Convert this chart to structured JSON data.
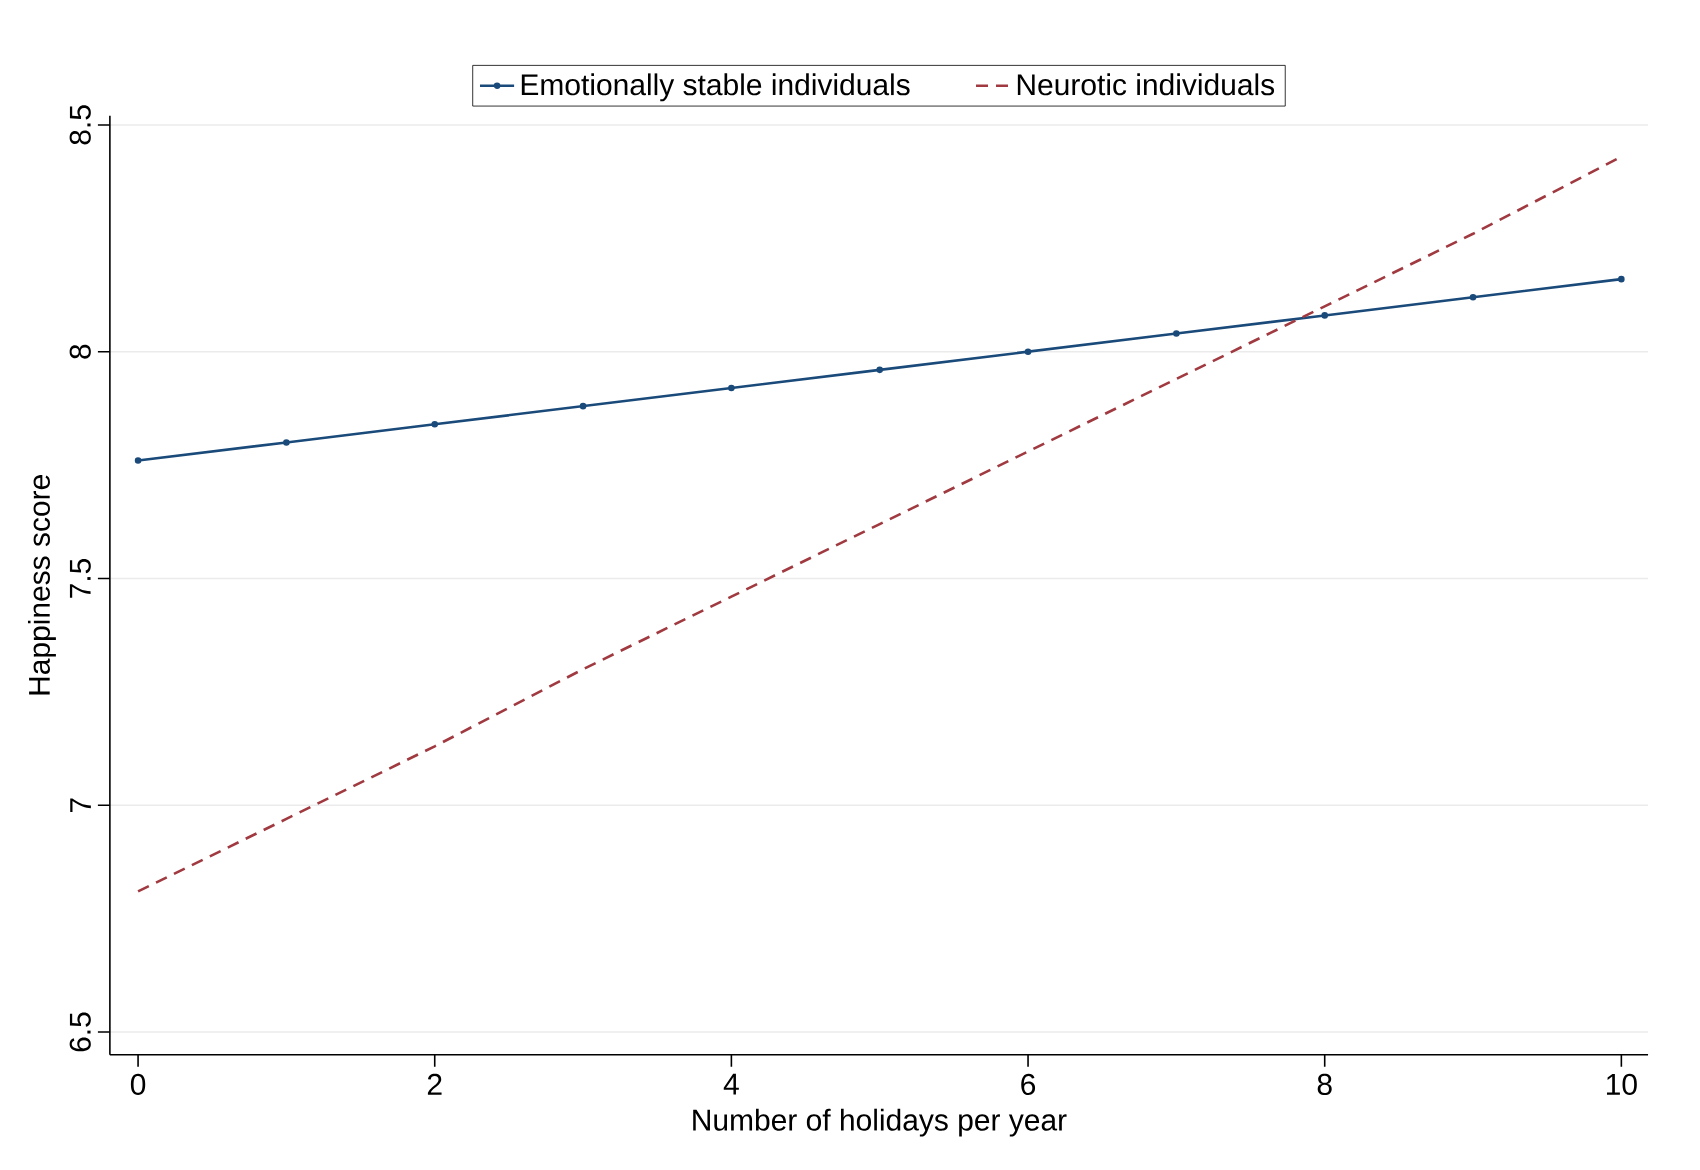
{
  "chart_data": {
    "type": "line",
    "xlabel": "Number of holidays per year",
    "ylabel": "Happiness score",
    "x": [
      0,
      1,
      2,
      3,
      4,
      5,
      6,
      7,
      8,
      9,
      10
    ],
    "series": [
      {
        "name": "Emotionally stable individuals",
        "color": "#1a4a7a",
        "marker": "circle",
        "line_style": "solid",
        "values": [
          7.76,
          7.8,
          7.84,
          7.88,
          7.92,
          7.96,
          8.0,
          8.04,
          8.08,
          8.12,
          8.16
        ]
      },
      {
        "name": "Neurotic individuals",
        "color": "#a03a40",
        "marker": "none",
        "line_style": "dashed",
        "values": [
          6.81,
          6.97,
          7.13,
          7.3,
          7.46,
          7.62,
          7.78,
          7.94,
          8.1,
          8.26,
          8.43
        ]
      }
    ],
    "xlim": [
      -0.19,
      10.18
    ],
    "ylim": [
      6.45,
      8.52
    ],
    "xticks": [
      0,
      2,
      4,
      6,
      8,
      10
    ],
    "yticks": [
      6.5,
      7,
      7.5,
      8,
      8.5
    ],
    "grid": "y",
    "legend": "top"
  }
}
